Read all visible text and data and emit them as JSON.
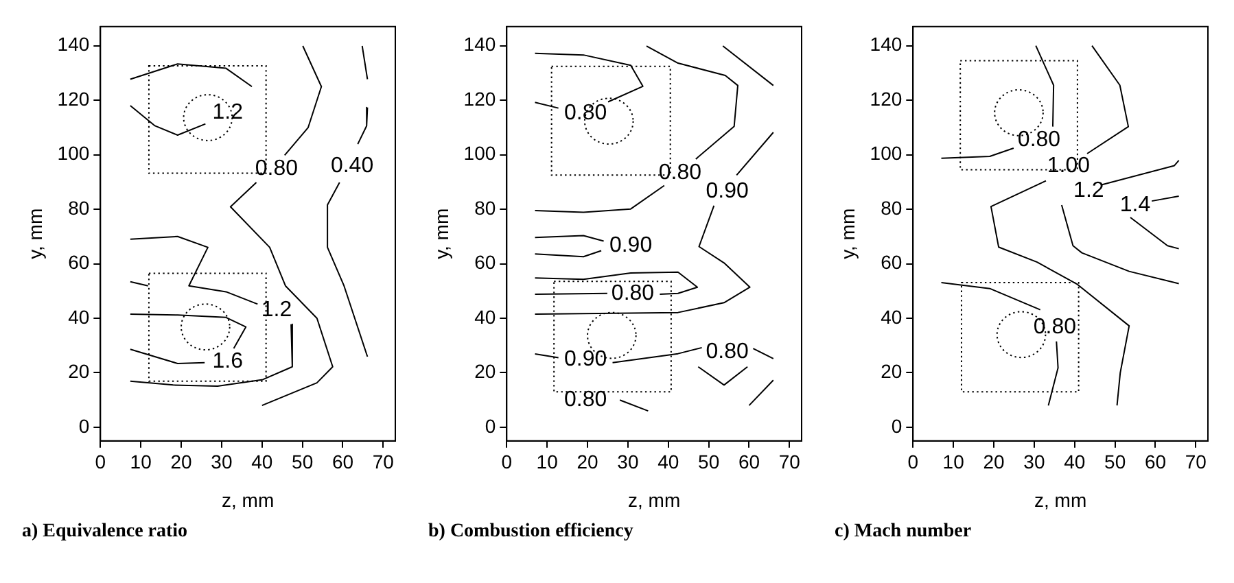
{
  "chart_data": [
    {
      "type": "line",
      "title": "a) Equivalence ratio",
      "xlabel": "z, mm",
      "ylabel": "y, mm",
      "xlim": [
        0,
        73
      ],
      "ylim": [
        -5,
        147
      ],
      "xticks": [
        0,
        10,
        20,
        30,
        40,
        50,
        60,
        70
      ],
      "yticks": [
        0,
        20,
        40,
        60,
        80,
        100,
        120,
        140
      ],
      "grid": false,
      "legend": false,
      "marker": "none",
      "series": [
        {
          "color": "#000000",
          "line_style": "solid",
          "x": [
            7.4,
            19.1,
            31.1,
            37.5,
            null,
            26.0,
            19.1,
            13.5,
            7.4
          ],
          "values": [
            127.7,
            133.3,
            131.7,
            125.0,
            null,
            111.3,
            107.2,
            110.6,
            118.0
          ]
        },
        {
          "color": "#000000",
          "line_style": "solid",
          "x": [
            50.1,
            54.7,
            51.4,
            45.6,
            null,
            38.6,
            32.2,
            41.9,
            45.8,
            53.6,
            57.5,
            53.6,
            40.0
          ],
          "values": [
            139.9,
            125.0,
            109.9,
            99.8,
            null,
            89.8,
            80.9,
            66.0,
            51.9,
            40.0,
            22.2,
            16.3,
            8.0
          ]
        },
        {
          "color": "#000000",
          "line_style": "solid",
          "x": [
            64.8,
            66.1,
            null,
            66.1,
            65.9,
            63.7,
            null,
            59.2,
            56.2,
            56.2,
            60.3,
            66.1
          ],
          "values": [
            139.9,
            127.7,
            null,
            117.3,
            110.6,
            103.9,
            null,
            89.8,
            81.6,
            66.0,
            51.9,
            25.9
          ]
        },
        {
          "color": "#000000",
          "line_style": "solid",
          "x": [
            7.4,
            19.1,
            26.6,
            21.9,
            31.1,
            38.9,
            null,
            47.2,
            47.5,
            40.2,
            29.0,
            18.0,
            7.4
          ],
          "values": [
            69.0,
            70.0,
            66.0,
            51.9,
            49.7,
            45.2,
            null,
            37.8,
            22.2,
            17.5,
            15.1,
            15.5,
            16.9
          ]
        },
        {
          "color": "#000000",
          "line_style": "solid",
          "x": [
            7.4,
            11.8
          ],
          "values": [
            53.4,
            51.9
          ]
        },
        {
          "color": "#000000",
          "line_style": "solid",
          "x": [
            7.4,
            19.1,
            31.1,
            36.0,
            33.0,
            null,
            25.8,
            19.1,
            7.4
          ],
          "values": [
            41.5,
            41.2,
            40.3,
            36.8,
            28.9,
            null,
            23.7,
            23.4,
            28.6
          ]
        }
      ],
      "annotations": [
        "1.2",
        "0.80",
        "0.40",
        "1.2",
        "1.6"
      ]
    },
    {
      "type": "line",
      "title": "b) Combustion efficiency",
      "xlabel": "z, mm",
      "ylabel": "y, mm",
      "xlim": [
        0,
        73
      ],
      "ylim": [
        -5,
        147
      ],
      "xticks": [
        0,
        10,
        20,
        30,
        40,
        50,
        60,
        70
      ],
      "yticks": [
        0,
        20,
        40,
        60,
        80,
        100,
        120,
        140
      ],
      "grid": false,
      "legend": false,
      "marker": "none",
      "series": [
        {
          "color": "#000000",
          "line_style": "solid",
          "x": [
            7.0,
            19.0,
            30.7,
            33.7,
            25.1,
            null,
            12.8,
            7.0
          ],
          "values": [
            137.2,
            136.6,
            132.8,
            125.1,
            119.4,
            null,
            117.1,
            119.2
          ]
        },
        {
          "color": "#000000",
          "line_style": "solid",
          "x": [
            34.6,
            42.4,
            54.1,
            57.2,
            56.3,
            46.8,
            null,
            39.0,
            30.7,
            19.0,
            7.0
          ],
          "values": [
            139.9,
            133.6,
            129.1,
            125.4,
            110.4,
            98.4,
            null,
            88.7,
            80.1,
            78.9,
            79.5
          ]
        },
        {
          "color": "#000000",
          "line_style": "solid",
          "x": [
            53.5,
            66.0
          ],
          "values": [
            139.9,
            125.4
          ]
        },
        {
          "color": "#000000",
          "line_style": "solid",
          "x": [
            66.0,
            56.9,
            null,
            51.3,
            47.6,
            53.8,
            60.2,
            53.8,
            42.4,
            7.0
          ],
          "values": [
            108.2,
            92.5,
            null,
            81.3,
            66.3,
            60.3,
            51.4,
            45.7,
            42.1,
            41.5
          ]
        },
        {
          "color": "#000000",
          "line_style": "solid",
          "x": [
            7.0,
            19.0,
            24.0,
            null,
            23.4,
            19.0,
            7.0
          ],
          "values": [
            69.6,
            70.3,
            68.3,
            null,
            64.8,
            62.6,
            63.6
          ]
        },
        {
          "color": "#000000",
          "line_style": "solid",
          "x": [
            7.0,
            24.9,
            null,
            37.9,
            42.4,
            47.2,
            42.4,
            30.7,
            19.0,
            7.0
          ],
          "values": [
            48.8,
            49.1,
            null,
            48.8,
            49.1,
            51.4,
            56.9,
            56.6,
            54.3,
            54.8
          ]
        },
        {
          "color": "#000000",
          "line_style": "solid",
          "x": [
            7.0,
            12.8,
            null,
            26.2,
            42.4,
            48.3
          ],
          "values": [
            26.9,
            25.5,
            null,
            23.7,
            27.0,
            29.2
          ]
        },
        {
          "color": "#000000",
          "line_style": "solid",
          "x": [
            61.0,
            66.0
          ],
          "values": [
            28.9,
            25.2
          ]
        },
        {
          "color": "#000000",
          "line_style": "solid",
          "x": [
            47.4,
            53.8,
            59.6
          ],
          "values": [
            22.2,
            15.5,
            22.2
          ]
        },
        {
          "color": "#000000",
          "line_style": "solid",
          "x": [
            66.0,
            60.0
          ],
          "values": [
            17.3,
            8.0
          ]
        },
        {
          "color": "#000000",
          "line_style": "solid",
          "x": [
            28.0,
            35.0
          ],
          "values": [
            10.0,
            6.0
          ]
        }
      ],
      "annotations": [
        "0.80",
        "0.80",
        "0.90",
        "0.90",
        "0.80",
        "0.90",
        "0.80",
        "0.80"
      ]
    },
    {
      "type": "line",
      "title": "c) Mach number",
      "xlabel": "z, mm",
      "ylabel": "y, mm",
      "xlim": [
        0,
        73
      ],
      "ylim": [
        -5,
        147
      ],
      "xticks": [
        0,
        10,
        20,
        30,
        40,
        50,
        60,
        70
      ],
      "yticks": [
        0,
        20,
        40,
        60,
        80,
        100,
        120,
        140
      ],
      "grid": false,
      "legend": false,
      "marker": "none",
      "series": [
        {
          "color": "#000000",
          "line_style": "solid",
          "x": [
            30.4,
            34.8,
            34.6,
            null,
            24.9,
            19.0,
            7.0
          ],
          "values": [
            140,
            125.5,
            110.3,
            null,
            102.4,
            99.4,
            98.7
          ]
        },
        {
          "color": "#000000",
          "line_style": "solid",
          "x": [
            44.3,
            51.2,
            53.3,
            43.1,
            null,
            32.9,
            19.3,
            21.2,
            30.7,
            40.7,
            53.5,
            51.3,
            50.5
          ],
          "values": [
            140,
            125.5,
            110.3,
            100.4,
            null,
            90.4,
            81.0,
            66.1,
            60.6,
            52.4,
            37.2,
            20.0,
            8.0
          ]
        },
        {
          "color": "#000000",
          "line_style": "solid",
          "x": [
            65.8,
            64.7,
            46.8,
            null,
            36.8,
            39.6,
            41.8,
            53.5,
            65.8
          ],
          "values": [
            97.9,
            96.0,
            89.0,
            null,
            81.5,
            66.6,
            64.0,
            57.2,
            52.7
          ]
        },
        {
          "color": "#000000",
          "line_style": "solid",
          "x": [
            65.8,
            59.1,
            null,
            53.8,
            63.0,
            65.8
          ],
          "values": [
            84.8,
            83.0,
            null,
            77.0,
            66.6,
            65.5
          ]
        },
        {
          "color": "#000000",
          "line_style": "solid",
          "x": [
            7.0,
            19.0,
            31.5,
            null,
            35.5,
            35.9,
            33.5
          ],
          "values": [
            53.1,
            50.9,
            43.1,
            null,
            31.5,
            21.8,
            8.0
          ]
        }
      ],
      "annotations": [
        "0.80",
        "1.00",
        "1.2",
        "1.4",
        "0.80"
      ]
    }
  ]
}
